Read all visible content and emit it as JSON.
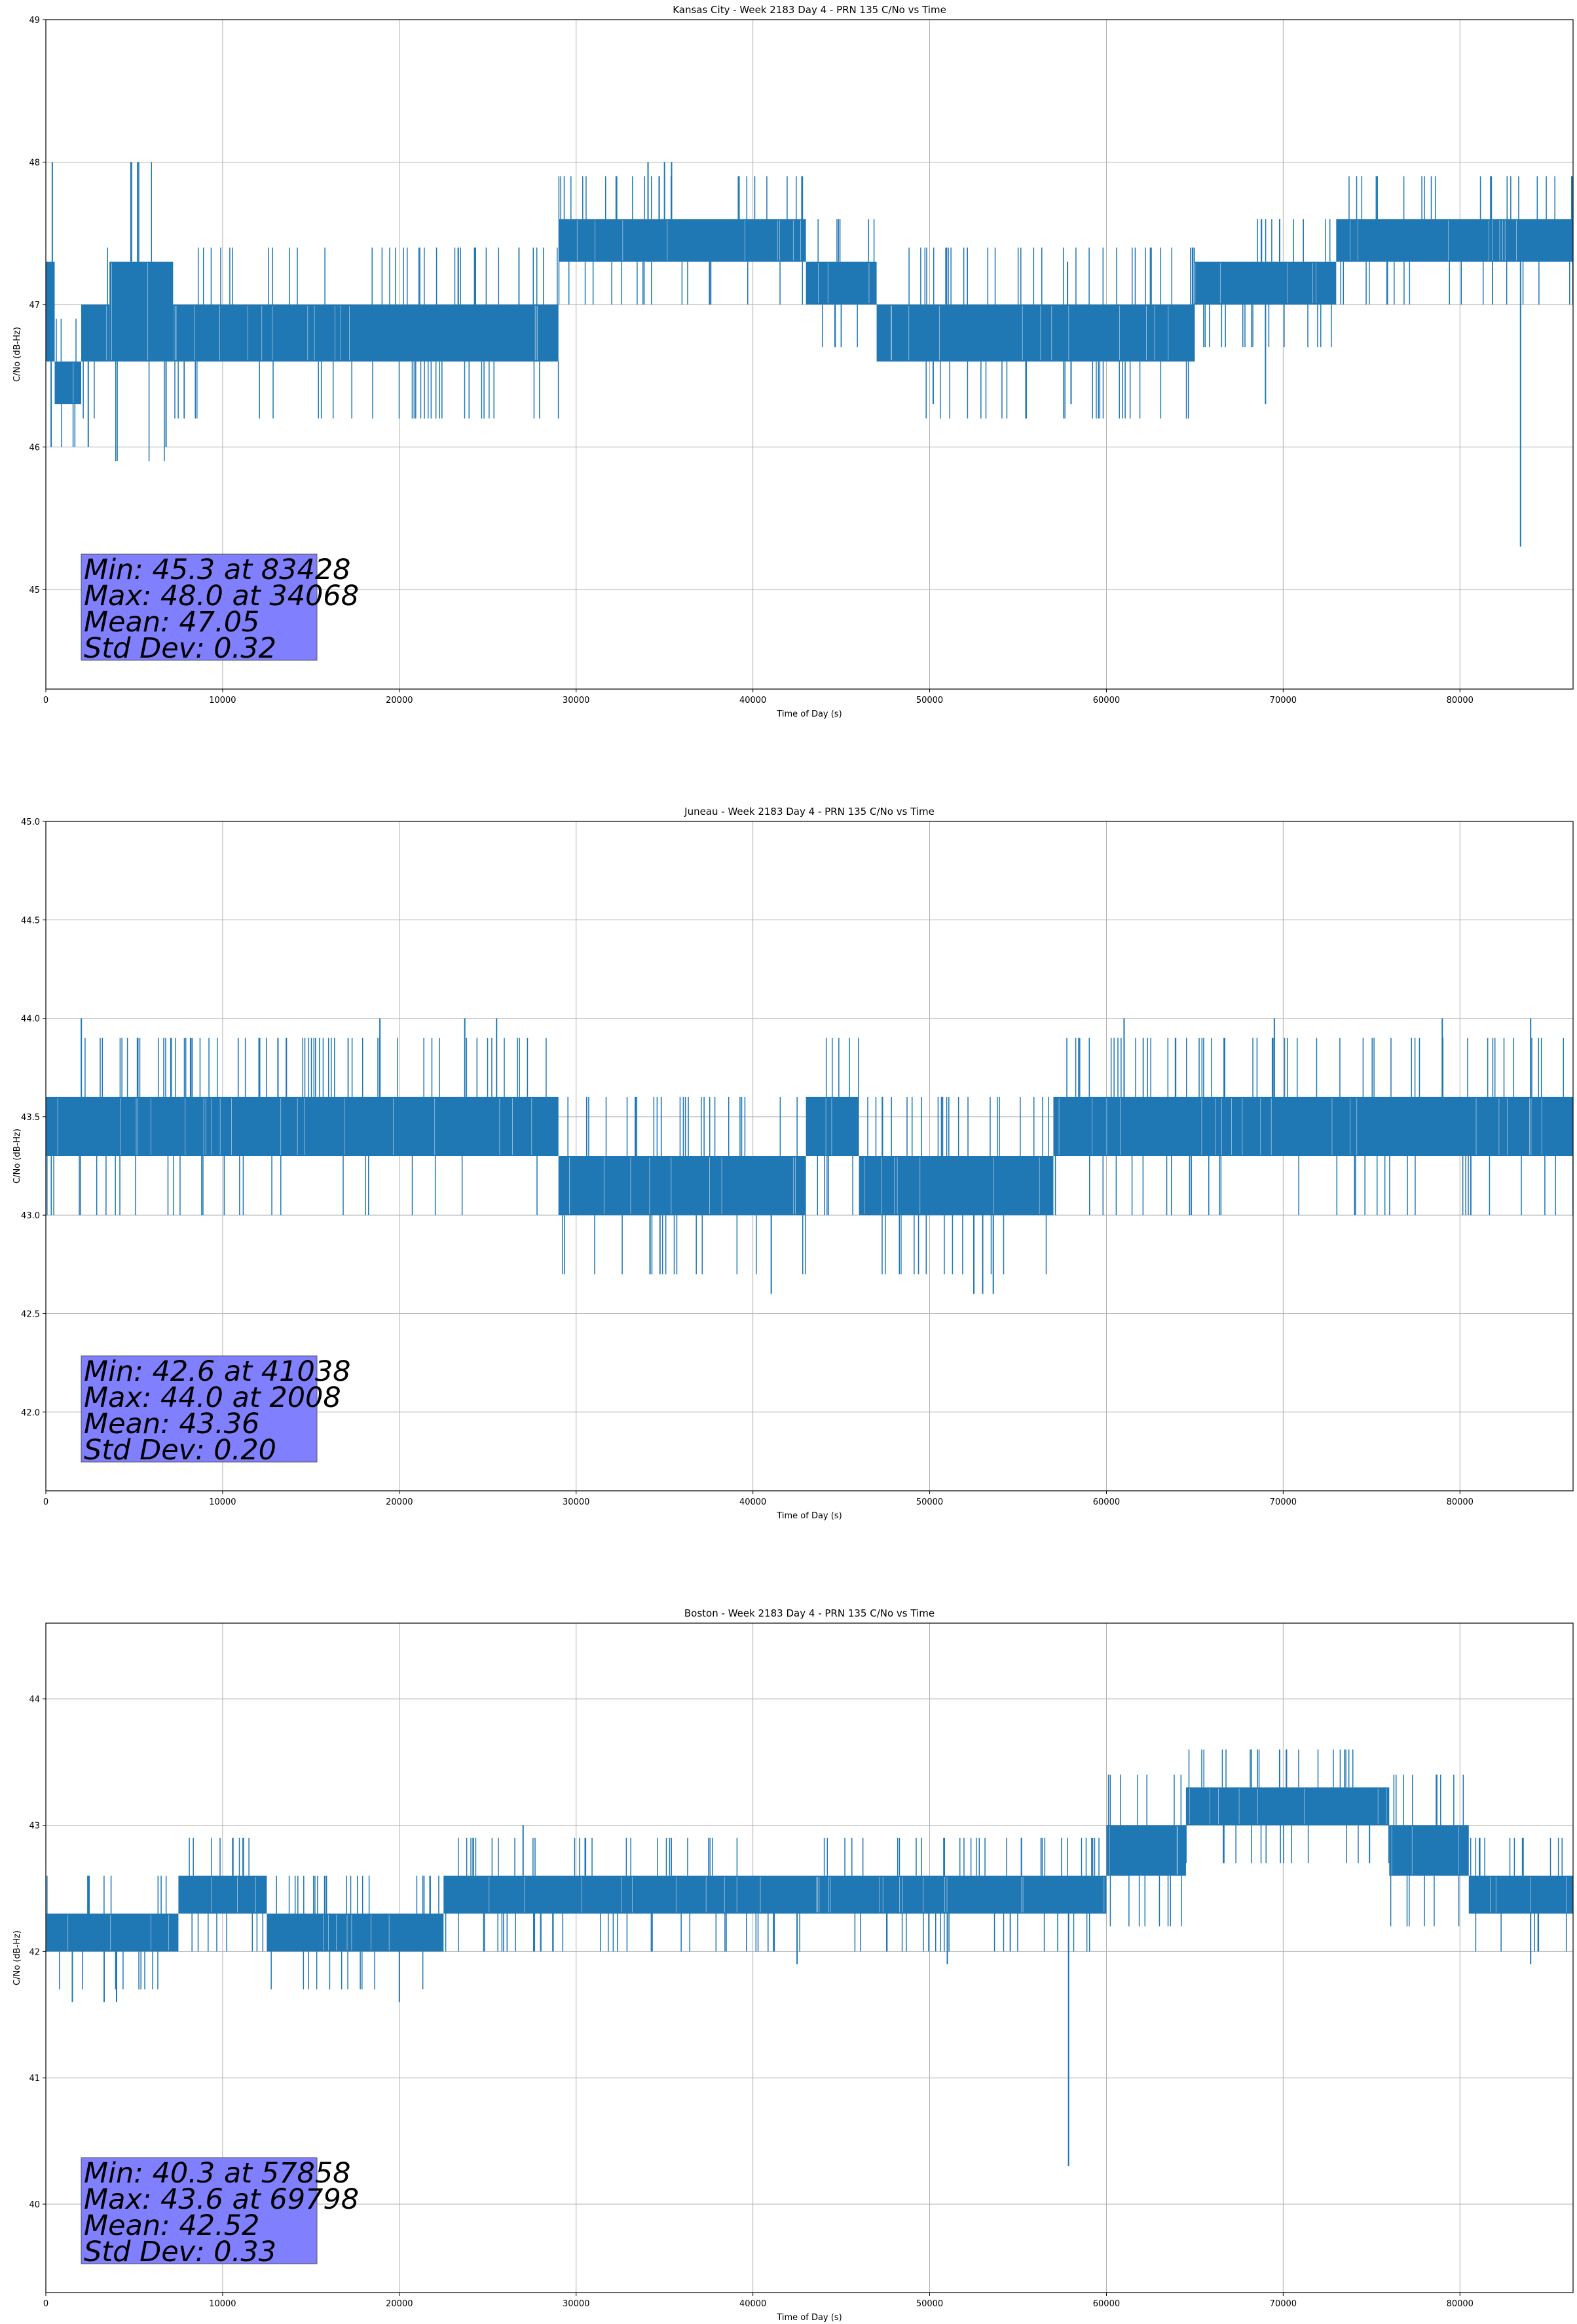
{
  "colors": {
    "series": "#1f77b4",
    "grid": "#b0b0b0",
    "stats_box": "#8080ff",
    "axes": "#000000"
  },
  "chart_data": [
    {
      "type": "line",
      "title": "Kansas City - Week 2183 Day 4 - PRN 135 C/No vs Time",
      "xlabel": "Time of Day (s)",
      "ylabel": "C/No (dB-Hz)",
      "xlim": [
        0,
        86400
      ],
      "ylim": [
        44.3,
        49.0
      ],
      "xticks": [
        0,
        10000,
        20000,
        30000,
        40000,
        50000,
        60000,
        70000,
        80000
      ],
      "yticks": [
        45,
        46,
        47,
        48,
        49
      ],
      "ytick_labels": [
        "45",
        "46",
        "47",
        "48",
        "49"
      ],
      "grid": true,
      "band_segments": [
        {
          "x": [
            0,
            500
          ],
          "lo": 46.6,
          "hi": 47.3
        },
        {
          "x": [
            500,
            2000
          ],
          "lo": 46.3,
          "hi": 46.6
        },
        {
          "x": [
            2000,
            3600
          ],
          "lo": 46.6,
          "hi": 47.0
        },
        {
          "x": [
            3600,
            7200
          ],
          "lo": 46.6,
          "hi": 47.3
        },
        {
          "x": [
            7200,
            29000
          ],
          "lo": 46.6,
          "hi": 47.0
        },
        {
          "x": [
            29000,
            43000
          ],
          "lo": 47.3,
          "hi": 47.6
        },
        {
          "x": [
            43000,
            47000
          ],
          "lo": 47.0,
          "hi": 47.3
        },
        {
          "x": [
            47000,
            65000
          ],
          "lo": 46.6,
          "hi": 47.0
        },
        {
          "x": [
            65000,
            73000
          ],
          "lo": 47.0,
          "hi": 47.3
        },
        {
          "x": [
            73000,
            86400
          ],
          "lo": 47.3,
          "hi": 47.6
        }
      ],
      "spikes": [
        {
          "x": 300,
          "y": 46.0
        },
        {
          "x": 2400,
          "y": 46.0
        },
        {
          "x": 6800,
          "y": 46.0
        },
        {
          "x": 34068,
          "y": 48.0
        },
        {
          "x": 35000,
          "y": 48.0
        },
        {
          "x": 35400,
          "y": 48.0
        },
        {
          "x": 83428,
          "y": 45.3
        },
        {
          "x": 69000,
          "y": 46.3
        },
        {
          "x": 50200,
          "y": 46.3
        },
        {
          "x": 58000,
          "y": 46.3
        },
        {
          "x": 57800,
          "y": 47.3
        },
        {
          "x": 69800,
          "y": 47.6
        }
      ],
      "stats": {
        "min": "Min: 45.3 at 83428",
        "max": "Max: 48.0 at 34068",
        "mean": "Mean: 47.05",
        "std": "Std Dev: 0.32"
      }
    },
    {
      "type": "line",
      "title": "Juneau - Week 2183 Day 4 - PRN 135 C/No vs Time",
      "xlabel": "Time of Day (s)",
      "ylabel": "C/No (dB-Hz)",
      "xlim": [
        0,
        86400
      ],
      "ylim": [
        41.6,
        45.0
      ],
      "xticks": [
        0,
        10000,
        20000,
        30000,
        40000,
        50000,
        60000,
        70000,
        80000
      ],
      "yticks": [
        42.0,
        42.5,
        43.0,
        43.5,
        44.0,
        44.5,
        45.0
      ],
      "ytick_labels": [
        "42.0",
        "42.5",
        "43.0",
        "43.5",
        "44.0",
        "44.5",
        "45.0"
      ],
      "grid": true,
      "band_segments": [
        {
          "x": [
            0,
            29000
          ],
          "lo": 43.3,
          "hi": 43.6
        },
        {
          "x": [
            29000,
            43000
          ],
          "lo": 43.0,
          "hi": 43.3
        },
        {
          "x": [
            43000,
            46000
          ],
          "lo": 43.3,
          "hi": 43.6
        },
        {
          "x": [
            46000,
            57000
          ],
          "lo": 43.0,
          "hi": 43.3
        },
        {
          "x": [
            57000,
            86400
          ],
          "lo": 43.3,
          "hi": 43.6
        }
      ],
      "spikes": [
        {
          "x": 2008,
          "y": 44.0
        },
        {
          "x": 41038,
          "y": 42.6
        },
        {
          "x": 52500,
          "y": 42.6
        },
        {
          "x": 53000,
          "y": 42.6
        },
        {
          "x": 53600,
          "y": 42.6
        },
        {
          "x": 18900,
          "y": 44.0
        },
        {
          "x": 23700,
          "y": 44.0
        },
        {
          "x": 25500,
          "y": 44.0
        },
        {
          "x": 61000,
          "y": 44.0
        },
        {
          "x": 69500,
          "y": 44.0
        },
        {
          "x": 79000,
          "y": 44.0
        },
        {
          "x": 84000,
          "y": 44.0
        }
      ],
      "stats": {
        "min": "Min: 42.6 at 41038",
        "max": "Max: 44.0 at 2008",
        "mean": "Mean: 43.36",
        "std": "Std Dev: 0.20"
      }
    },
    {
      "type": "line",
      "title": "Boston - Week 2183 Day 4 - PRN 135 C/No vs Time",
      "xlabel": "Time of Day (s)",
      "ylabel": "C/No (dB-Hz)",
      "xlim": [
        0,
        86400
      ],
      "ylim": [
        39.3,
        44.6
      ],
      "xticks": [
        0,
        10000,
        20000,
        30000,
        40000,
        50000,
        60000,
        70000,
        80000
      ],
      "yticks": [
        40,
        41,
        42,
        43,
        44
      ],
      "ytick_labels": [
        "40",
        "41",
        "42",
        "43",
        "44"
      ],
      "grid": true,
      "band_segments": [
        {
          "x": [
            0,
            7500
          ],
          "lo": 42.0,
          "hi": 42.3
        },
        {
          "x": [
            7500,
            12500
          ],
          "lo": 42.3,
          "hi": 42.6
        },
        {
          "x": [
            12500,
            22500
          ],
          "lo": 42.0,
          "hi": 42.3
        },
        {
          "x": [
            22500,
            60000
          ],
          "lo": 42.3,
          "hi": 42.6
        },
        {
          "x": [
            60000,
            64500
          ],
          "lo": 42.6,
          "hi": 43.0
        },
        {
          "x": [
            64500,
            76000
          ],
          "lo": 43.0,
          "hi": 43.3
        },
        {
          "x": [
            76000,
            80500
          ],
          "lo": 42.6,
          "hi": 43.0
        },
        {
          "x": [
            80500,
            86400
          ],
          "lo": 42.3,
          "hi": 42.6
        }
      ],
      "spikes": [
        {
          "x": 57858,
          "y": 40.3
        },
        {
          "x": 69798,
          "y": 43.6
        },
        {
          "x": 3300,
          "y": 41.6
        },
        {
          "x": 4000,
          "y": 41.6
        },
        {
          "x": 1500,
          "y": 41.6
        },
        {
          "x": 20000,
          "y": 41.6
        },
        {
          "x": 27000,
          "y": 43.0
        },
        {
          "x": 42500,
          "y": 41.9
        },
        {
          "x": 51000,
          "y": 41.9
        },
        {
          "x": 84000,
          "y": 41.9
        }
      ],
      "stats": {
        "min": "Min: 40.3 at 57858",
        "max": "Max: 43.6 at 69798",
        "mean": "Mean: 42.52",
        "std": "Std Dev: 0.33"
      }
    }
  ]
}
